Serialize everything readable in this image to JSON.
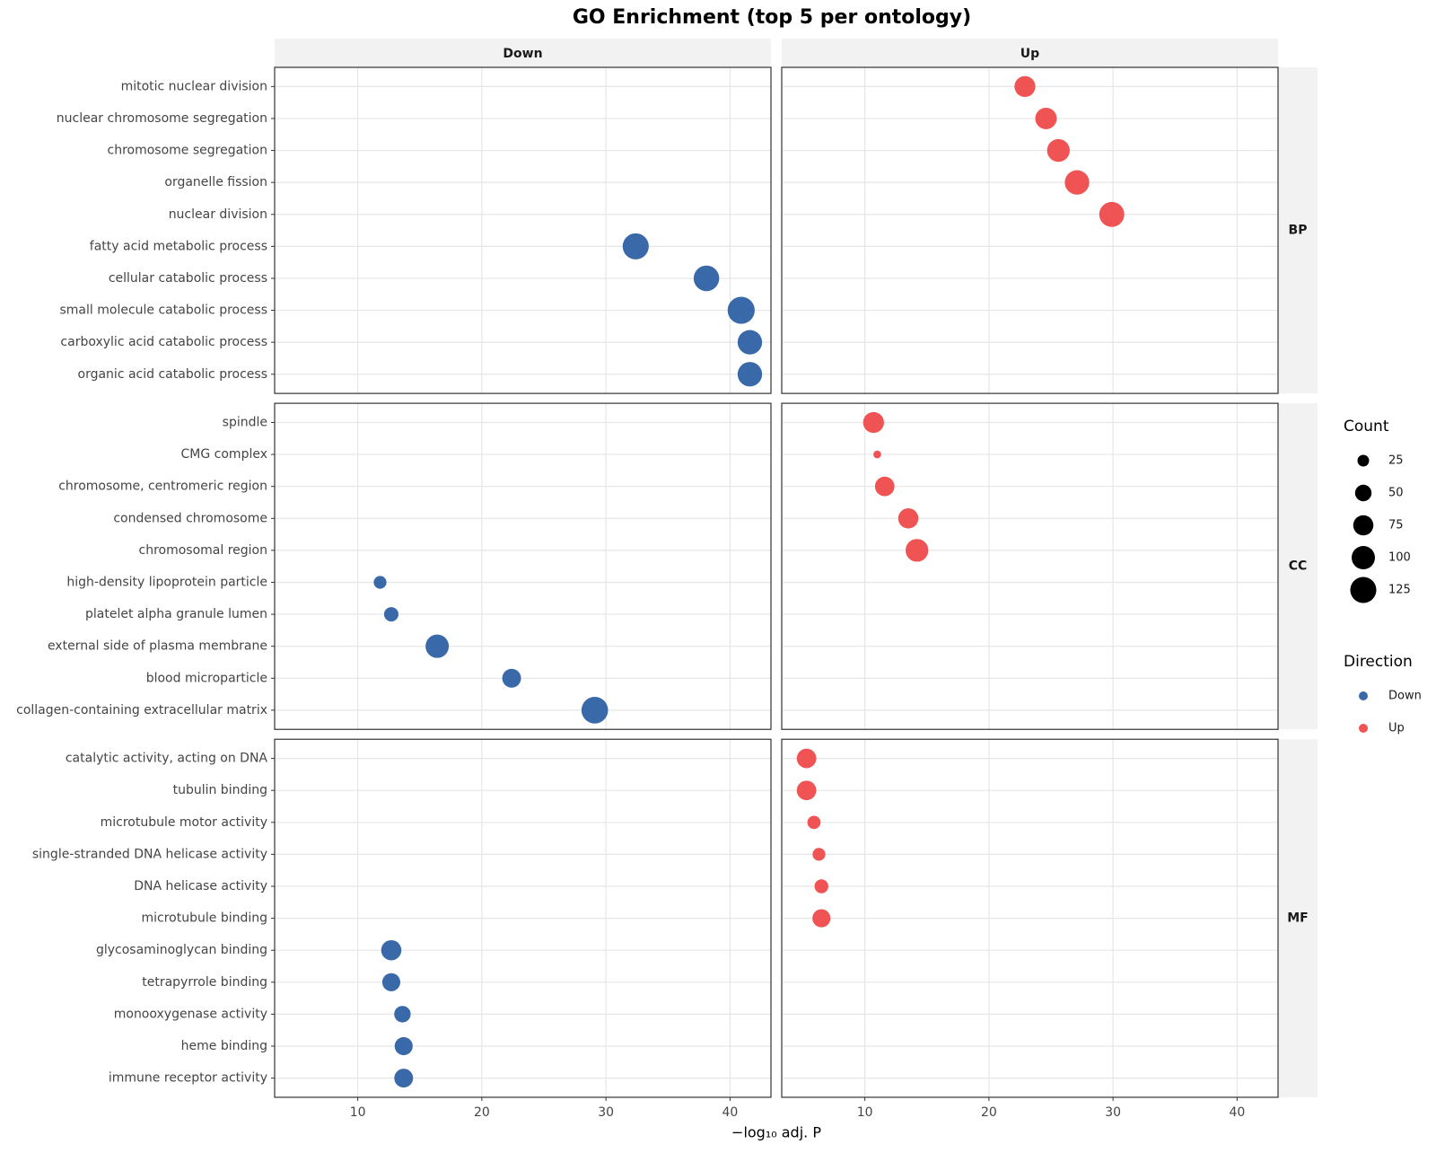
{
  "chart_data": {
    "type": "dot",
    "title": "GO Enrichment (top 5 per ontology)",
    "x_label": "−log₁₀ adj. P",
    "columns": [
      "Down",
      "Up"
    ],
    "xlim": [
      3.3,
      43.3
    ],
    "xticks": [
      10,
      20,
      30,
      40
    ],
    "grid": true,
    "size_title": "Count",
    "size_legend": [
      25,
      50,
      75,
      100,
      125
    ],
    "color_title": "Direction",
    "panels": [
      {
        "label": "BP",
        "categories": [
          "mitotic nuclear division",
          "nuclear chromosome segregation",
          "chromosome segregation",
          "organelle fission",
          "nuclear division",
          "fatty acid metabolic process",
          "cellular catabolic process",
          "small molecule catabolic process",
          "carboxylic acid catabolic process",
          "organic acid catabolic process"
        ],
        "series": [
          {
            "name": "Down",
            "color": "#3a69a9",
            "values": [
              null,
              null,
              null,
              null,
              null,
              32.4,
              38.1,
              40.9,
              41.6,
              41.6
            ],
            "counts": [
              null,
              null,
              null,
              null,
              null,
              125,
              120,
              135,
              110,
              110
            ]
          },
          {
            "name": "Up",
            "color": "#ef5353",
            "values": [
              22.9,
              24.6,
              25.6,
              27.1,
              29.9,
              null,
              null,
              null,
              null,
              null
            ],
            "counts": [
              80,
              85,
              95,
              110,
              115,
              null,
              null,
              null,
              null,
              null
            ]
          }
        ]
      },
      {
        "label": "CC",
        "categories": [
          "spindle",
          "CMG complex",
          "chromosome, centromeric region",
          "condensed chromosome",
          "chromosomal region",
          "high-density lipoprotein particle",
          "platelet alpha granule lumen",
          "external side of plasma membrane",
          "blood microparticle",
          "collagen-containing extracellular matrix"
        ],
        "series": [
          {
            "name": "Down",
            "color": "#3a69a9",
            "values": [
              null,
              null,
              null,
              null,
              null,
              11.8,
              12.7,
              16.4,
              22.4,
              29.1
            ],
            "counts": [
              null,
              null,
              null,
              null,
              null,
              30,
              38,
              100,
              65,
              130
            ]
          },
          {
            "name": "Up",
            "color": "#ef5353",
            "values": [
              10.7,
              11.0,
              11.6,
              13.5,
              14.2,
              null,
              null,
              null,
              null,
              null
            ],
            "counts": [
              80,
              11,
              70,
              75,
              95,
              null,
              null,
              null,
              null,
              null
            ]
          }
        ]
      },
      {
        "label": "MF",
        "categories": [
          "catalytic activity, acting on DNA",
          "tubulin binding",
          "microtubule motor activity",
          "single-stranded DNA helicase activity",
          "DNA helicase activity",
          "microtubule binding",
          "glycosaminoglycan binding",
          "tetrapyrrole binding",
          "monooxygenase activity",
          "heme binding",
          "immune receptor activity"
        ],
        "series": [
          {
            "name": "Down",
            "color": "#3a69a9",
            "values": [
              null,
              null,
              null,
              null,
              null,
              null,
              12.7,
              12.7,
              13.6,
              13.7,
              13.7
            ],
            "counts": [
              null,
              null,
              null,
              null,
              null,
              null,
              75,
              60,
              50,
              60,
              65
            ]
          },
          {
            "name": "Up",
            "color": "#ef5353",
            "values": [
              5.3,
              5.3,
              5.9,
              6.3,
              6.5,
              6.5,
              null,
              null,
              null,
              null,
              null
            ],
            "counts": [
              70,
              70,
              32,
              30,
              35,
              60,
              null,
              null,
              null,
              null,
              null
            ]
          }
        ]
      }
    ]
  }
}
